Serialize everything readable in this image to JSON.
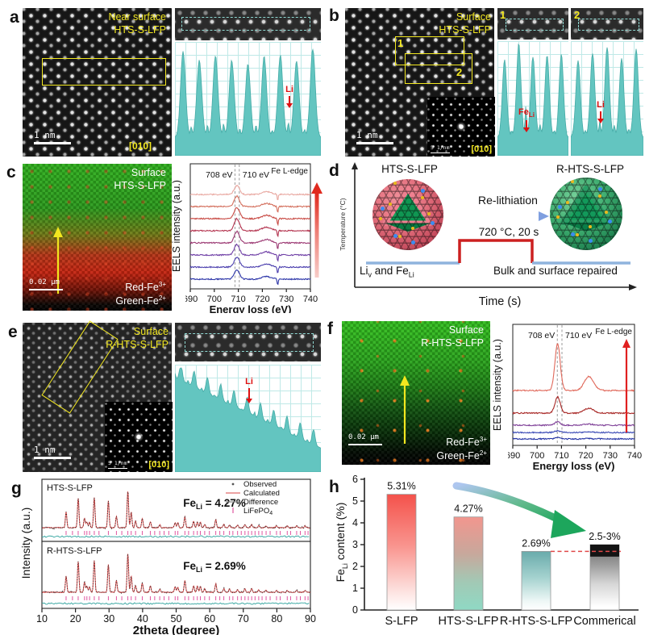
{
  "panels": {
    "a": {
      "letter": "a",
      "label1": "Near surface",
      "label2": "HTS-S-LFP",
      "scalebar": "1 nm",
      "zone": "[010]",
      "marker": "Li"
    },
    "b": {
      "letter": "b",
      "label1": "Surface",
      "label2": "HTS-S-LFP",
      "scalebar": "1 nm",
      "fft_scale": "5 1/nm",
      "zone": "[010]",
      "box1": "1",
      "box2": "2",
      "strip1": "1",
      "strip2": "2",
      "marker1_main": "Fe",
      "marker1_sub": "Li",
      "marker2": "Li"
    },
    "c": {
      "letter": "c",
      "label1": "Surface",
      "label2": "HTS-S-LFP",
      "scalebar": "0.02 μm",
      "red_main": "Red-Fe",
      "red_sup": "3+",
      "green_main": "Green-Fe",
      "green_sup": "2+"
    },
    "d": {
      "letter": "d",
      "ylabel": "Temperature (°C)",
      "xlabel": "Time (s)",
      "left_title": "HTS-S-LFP",
      "right_title": "R-HTS-S-LFP",
      "process": "Re-lithiation",
      "condition": "720 °C, 20 s",
      "cap_left_1": "Li",
      "cap_left_sub1": "v",
      "cap_left_2": " and Fe",
      "cap_left_sub2": "Li",
      "cap_right": "Bulk and surface repaired"
    },
    "e": {
      "letter": "e",
      "label1": "Surface",
      "label2": "R-HTS-S-LFP",
      "scalebar": "1 nm",
      "fft_scale": "5 1/nm",
      "zone": "[010]",
      "marker": "Li"
    },
    "f": {
      "letter": "f",
      "label1": "Surface",
      "label2": "R-HTS-S-LFP",
      "scalebar": "0.02 μm",
      "red_main": "Red-Fe",
      "red_sup": "3+",
      "green_main": "Green-Fe",
      "green_sup": "2+"
    },
    "g": {
      "letter": "g"
    },
    "h": {
      "letter": "h"
    }
  },
  "chart_data": [
    {
      "id": "eels_c",
      "type": "line",
      "panel": "c",
      "xlabel": "Energy loss (eV)",
      "ylabel": "EELS intensity (a.u.)",
      "xlim": [
        690,
        740
      ],
      "xticks": [
        690,
        700,
        710,
        720,
        730,
        740
      ],
      "annotations": {
        "peak1": "708 eV",
        "peak2": "710 eV",
        "edge": "Fe L-edge"
      },
      "ref_lines_eV": [
        708.6,
        710.4
      ],
      "main_peak_eV": 709.4,
      "bump_eV": 721.8,
      "artifact_eV": 726.4,
      "spike_depth": 8,
      "curves_bottom_to_top": [
        {
          "color": "#2c35a8",
          "amp": 11
        },
        {
          "color": "#4b3fae",
          "amp": 12
        },
        {
          "color": "#6f3fa6",
          "amp": 13
        },
        {
          "color": "#9c3a74",
          "amp": 14
        },
        {
          "color": "#b43550",
          "amp": 15
        },
        {
          "color": "#c84a44",
          "amp": 14
        },
        {
          "color": "#d4705e",
          "amp": 13
        },
        {
          "color": "#e9a9a2",
          "amp": 11
        }
      ]
    },
    {
      "id": "eels_f",
      "type": "line",
      "panel": "f",
      "xlabel": "Energy loss (eV)",
      "ylabel": "EELS intensity (a.u.)",
      "xlim": [
        690,
        740
      ],
      "xticks": [
        690,
        700,
        710,
        720,
        730,
        740
      ],
      "annotations": {
        "peak1": "708 eV",
        "peak2": "710 eV",
        "edge": "Fe L-edge"
      },
      "ref_lines_eV": [
        708.3,
        710.2
      ],
      "main_peak_eV": 708.4,
      "bump_eV": 721.3,
      "artifact_eV": 0,
      "spike_depth": 0,
      "curves_bottom_to_top": [
        {
          "color": "#2433a5",
          "amp": 1.5
        },
        {
          "color": "#3a4ab5",
          "amp": 2
        },
        {
          "color": "#7e3f97",
          "amp": 4.5
        },
        {
          "color": "#a82826",
          "amp": 20
        },
        {
          "color": "#e0685a",
          "amp": 58
        }
      ]
    },
    {
      "id": "xrd",
      "type": "line",
      "panel": "g",
      "xlabel": "2theta (degree)",
      "ylabel": "Intensity (a.u.)",
      "xlim": [
        10,
        90
      ],
      "xticks": [
        10,
        20,
        30,
        40,
        50,
        60,
        70,
        80,
        90
      ],
      "patterns": [
        {
          "name": "HTS-S-LFP",
          "value_pre": "Fe",
          "value_sub": "Li",
          "value_post": " = 4.27%"
        },
        {
          "name": "R-HTS-S-LFP",
          "value_pre": "Fe",
          "value_sub": "Li",
          "value_post": " = 2.69%"
        }
      ],
      "legend": [
        {
          "label": "Observed",
          "symbol": "dot",
          "color": "#555555"
        },
        {
          "label": "Calculated",
          "symbol": "line",
          "color": "#e06a6a"
        },
        {
          "label": "Difference",
          "symbol": "line",
          "color": "#8a8a8a"
        },
        {
          "label": "LiFePO",
          "label_sub": "4",
          "symbol": "tick",
          "color": "#e055a0"
        }
      ],
      "colors": {
        "calculated": "#d94f4f",
        "observed": "#2a2a2a",
        "difference": "#2fa39d",
        "bragg": "#e055a0"
      },
      "peaks": [
        [
          17.2,
          0.42
        ],
        [
          20.8,
          0.8
        ],
        [
          22.7,
          0.26
        ],
        [
          23.4,
          0.16
        ],
        [
          24.2,
          0.14
        ],
        [
          25.6,
          0.82
        ],
        [
          29.8,
          0.72
        ],
        [
          32.2,
          0.3
        ],
        [
          35.6,
          1.0
        ],
        [
          36.6,
          0.42
        ],
        [
          37.9,
          0.18
        ],
        [
          39.9,
          0.24
        ],
        [
          42.3,
          0.16
        ],
        [
          45.1,
          0.08
        ],
        [
          49.7,
          0.14
        ],
        [
          50.5,
          0.13
        ],
        [
          52.6,
          0.3
        ],
        [
          55.2,
          0.17
        ],
        [
          56.3,
          0.15
        ],
        [
          57.2,
          0.15
        ],
        [
          58.5,
          0.09
        ],
        [
          61.8,
          0.22
        ],
        [
          64.2,
          0.09
        ],
        [
          65.9,
          0.08
        ],
        [
          68.3,
          0.07
        ],
        [
          70.5,
          0.09
        ],
        [
          72.5,
          0.09
        ],
        [
          74.6,
          0.06
        ],
        [
          76.8,
          0.05
        ],
        [
          79.9,
          0.05
        ],
        [
          83.1,
          0.05
        ],
        [
          85.9,
          0.05
        ],
        [
          88.4,
          0.05
        ]
      ],
      "extra_bragg": [
        19.1,
        27.0,
        33.8,
        43.6,
        46.4,
        47.8,
        53.7,
        59.9,
        63.0,
        66.9,
        69.4,
        71.5,
        73.5,
        75.6,
        78.0,
        81.0,
        84.1,
        87.0,
        89.3
      ]
    },
    {
      "id": "fe_li_bar",
      "type": "bar",
      "panel": "h",
      "categories": [
        "S-LFP",
        "HTS-S-LFP",
        "R-HTS-S-LFP",
        "Commerical"
      ],
      "values": [
        5.31,
        4.27,
        2.69,
        3.0
      ],
      "value_labels": [
        "5.31%",
        "4.27%",
        "2.69%",
        "2.5-3%"
      ],
      "ylim": [
        0,
        6
      ],
      "yticks": [
        0,
        1,
        2,
        3,
        4,
        5,
        6
      ],
      "ylabel_pre": "Fe",
      "ylabel_sub": "Li",
      "ylabel_post": " content (%)",
      "reference_line_value": 2.69,
      "reference_line_color": "#e04848",
      "commercial_band": [
        2.45,
        3.0
      ],
      "commercial_band_color": "#141414",
      "arrow_colors": [
        "#aec6ef",
        "#5fb98a",
        "#1da65c"
      ],
      "bar_fills": [
        [
          [
            "0%",
            "#f4524b"
          ],
          [
            "45%",
            "#f9958f"
          ],
          [
            "85%",
            "#fde4e2"
          ],
          [
            "100%",
            "#ffffff"
          ]
        ],
        [
          [
            "0%",
            "#f2968e"
          ],
          [
            "40%",
            "#c7a89c"
          ],
          [
            "70%",
            "#a2c9b5"
          ],
          [
            "100%",
            "#8fd9c4"
          ]
        ],
        [
          [
            "0%",
            "#69abab"
          ],
          [
            "45%",
            "#a5d2cf"
          ],
          [
            "85%",
            "#eef7f6"
          ],
          [
            "100%",
            "#ffffff"
          ]
        ],
        [
          [
            "0%",
            "#6a6a6a"
          ],
          [
            "30%",
            "#9b9b9b"
          ],
          [
            "60%",
            "#d6d6d6"
          ],
          [
            "95%",
            "#ffffff"
          ]
        ]
      ]
    },
    {
      "id": "profiles",
      "type": "area",
      "panel": "a,b,e",
      "a_profile": {
        "n_peaks": 9,
        "marker": "Li",
        "marker_valley": 7
      },
      "b_profile_1": {
        "n_peaks": 5,
        "marker": "Fe_Li",
        "marker_valley": 2
      },
      "b_profile_2": {
        "n_peaks": 5,
        "marker": "Li",
        "marker_valley": 2
      },
      "e_profile": {
        "descending": true,
        "n_teeth": 11,
        "marker": "Li",
        "marker_tooth": 6
      },
      "fill_color": "#63c5c0",
      "grid_color": "#bfe9e7"
    }
  ],
  "colors": {
    "annotation_yellow": "#f2e71f",
    "marker_red": "#dd1111",
    "profile_fill": "#63c5c0"
  }
}
